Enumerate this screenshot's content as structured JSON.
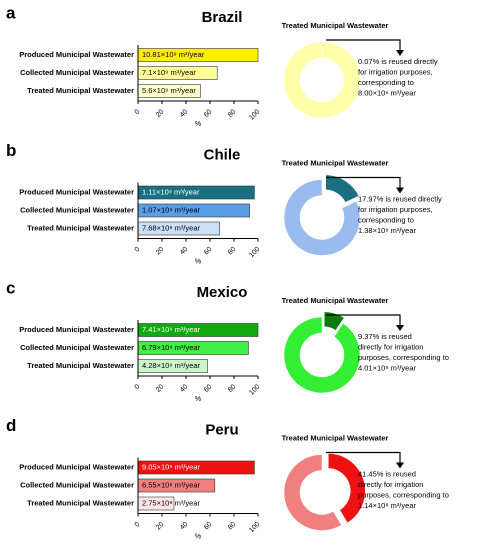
{
  "chart_data": [
    {
      "type": "bar",
      "panel": "a",
      "title": "Brazil",
      "categories": [
        "Produced Municipal Wastewater",
        "Collected Municipal Wastewater",
        "Treated Municipal Wastewater"
      ],
      "values": [
        100,
        66,
        52
      ],
      "colors": [
        "#ffee00",
        "#ffff99",
        "#ffffcc"
      ],
      "bar_labels": [
        "10.81×10⁹ m³/year",
        "7.1×10⁹ m³/year",
        "5.6×10⁹ m³/year"
      ],
      "xlim": [
        0,
        100
      ],
      "xticks": [
        0,
        20,
        40,
        60,
        80,
        100
      ],
      "xlabel": "%"
    },
    {
      "type": "pie",
      "title": "Treated Municipal Wastewater",
      "values": [
        0.07,
        99.93
      ],
      "colors": [
        "#ffee00",
        "#ffffaa"
      ],
      "annotation": [
        "0.07% is reused directly",
        "for irrigation purposes,",
        "corresponding to",
        "8.00×10⁶ m³/year"
      ]
    },
    {
      "type": "bar",
      "panel": "b",
      "title": "Chile",
      "categories": [
        "Produced Municipal Wastewater",
        "Collected Municipal Wastewater",
        "Treated Municipal Wastewater"
      ],
      "values": [
        97,
        93,
        68
      ],
      "colors": [
        "#1a7080",
        "#5a9ee8",
        "#cce0f5"
      ],
      "bar_labels": [
        "1.11×10⁹ m³/year",
        "1.07×10⁹ m³/year",
        "7.68×10⁸ m³/year"
      ],
      "xlim": [
        0,
        100
      ],
      "xticks": [
        0,
        20,
        40,
        60,
        80,
        100
      ],
      "xlabel": "%"
    },
    {
      "type": "pie",
      "title": "Treated Municipal Wastewater",
      "values": [
        17.97,
        82.03
      ],
      "colors": [
        "#1a7080",
        "#99bbee"
      ],
      "annotation": [
        "17.97% is reused directly",
        "for irrigation purposes,",
        "corresponding to",
        "1.38×10⁸ m³/year"
      ]
    },
    {
      "type": "bar",
      "panel": "c",
      "title": "Mexico",
      "categories": [
        "Produced Municipal Wastewater",
        "Collected Municipal Wastewater",
        "Treated Municipal Wastewater"
      ],
      "values": [
        100,
        92,
        58
      ],
      "colors": [
        "#11aa11",
        "#44ee44",
        "#ccf5cc"
      ],
      "bar_labels": [
        "7.41×10⁹ m³/year",
        "6.79×10⁹ m³/year",
        "4.28×10⁹ m³/year"
      ],
      "xlim": [
        0,
        100
      ],
      "xticks": [
        0,
        20,
        40,
        60,
        80,
        100
      ],
      "xlabel": "%"
    },
    {
      "type": "pie",
      "title": "Treated Municipal Wastewater",
      "values": [
        9.37,
        90.63
      ],
      "colors": [
        "#0a7a0a",
        "#33ee33"
      ],
      "annotation": [
        "9.37% is reused",
        "directly for irrigation",
        "purposes, corresponding to",
        "4.01×10⁸ m³/year"
      ]
    },
    {
      "type": "bar",
      "panel": "d",
      "title": "Peru",
      "categories": [
        "Produced Municipal Wastewater",
        "Collected Municipal Wastewater",
        "Treated Municipal Wastewater"
      ],
      "values": [
        97,
        64,
        30
      ],
      "colors": [
        "#ee1111",
        "#f08080",
        "#ffe6e6"
      ],
      "bar_labels": [
        "9.05×10⁸ m³/year",
        "6.55×10⁸ m³/year",
        "2.75×10⁸ m³/year"
      ],
      "xlim": [
        0,
        100
      ],
      "xticks": [
        0,
        20,
        40,
        60,
        80,
        100
      ],
      "xlabel": "%"
    },
    {
      "type": "pie",
      "title": "Treated Municipal Wastewater",
      "values": [
        41.45,
        58.55
      ],
      "colors": [
        "#ee1111",
        "#f08080"
      ],
      "annotation": [
        "41.45% is reused",
        "directly for irrigation",
        "purposes, corresponding to",
        "1.14×10⁸ m³/year"
      ]
    }
  ]
}
